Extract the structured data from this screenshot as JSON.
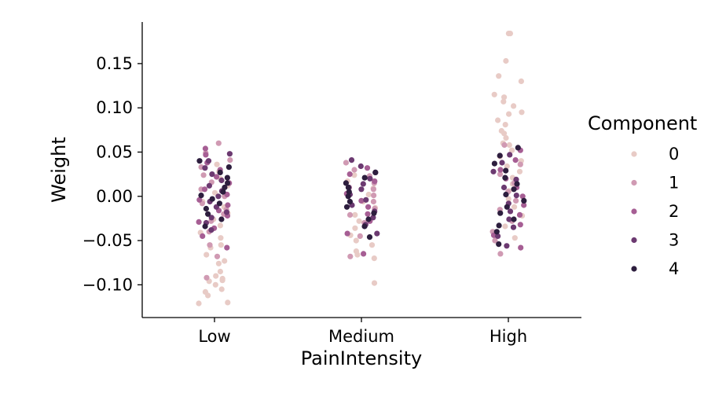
{
  "chart_data": {
    "type": "scatter",
    "subtype": "strip",
    "xlabel": "PainIntensity",
    "ylabel": "Weight",
    "categories": [
      "Low",
      "Medium",
      "High"
    ],
    "ylim": [
      -0.137,
      0.197
    ],
    "yticks": [
      -0.1,
      -0.05,
      0.0,
      0.05,
      0.1,
      0.15
    ],
    "ytick_labels": [
      "−0.10",
      "−0.05",
      "0.00",
      "0.05",
      "0.10",
      "0.15"
    ],
    "legend": {
      "title": "Component",
      "placement": "right"
    },
    "grid": false,
    "series": [
      {
        "name": "0",
        "color": "#e8cbc6",
        "points": [
          {
            "category": "Low",
            "values": [
              -0.121,
              -0.12,
              -0.112,
              -0.108,
              -0.105,
              -0.1,
              -0.096,
              -0.095,
              -0.093,
              -0.09,
              -0.085,
              -0.076,
              -0.073,
              -0.066,
              -0.058,
              -0.055,
              -0.047,
              -0.041,
              -0.033,
              -0.026,
              -0.019,
              -0.012,
              -0.006,
              0.004,
              0.012,
              0.02,
              0.028,
              0.036
            ]
          },
          {
            "category": "Medium",
            "values": [
              -0.098,
              -0.07,
              -0.066,
              -0.062,
              -0.055,
              -0.05,
              -0.044,
              -0.036,
              -0.028,
              -0.021,
              -0.013,
              -0.006,
              0.002,
              0.009,
              0.017,
              0.024
            ]
          },
          {
            "category": "High",
            "values": [
              0.184,
              0.184,
              0.153,
              0.136,
              0.13,
              0.115,
              0.112,
              0.107,
              0.102,
              0.095,
              0.093,
              0.086,
              0.081,
              0.074,
              0.071,
              0.066,
              0.06,
              0.058,
              0.052,
              0.045,
              0.04,
              0.034,
              0.028,
              0.021,
              0.014,
              0.006,
              -0.003,
              -0.012,
              -0.022,
              -0.034,
              -0.047
            ]
          }
        ]
      },
      {
        "name": "1",
        "color": "#d09ab3",
        "points": [
          {
            "category": "Low",
            "values": [
              -0.092,
              -0.068,
              -0.055,
              -0.04,
              -0.028,
              -0.02,
              -0.015,
              -0.008,
              0.0,
              0.008,
              0.016,
              0.024,
              0.033,
              0.041,
              0.049,
              0.06
            ]
          },
          {
            "category": "Medium",
            "values": [
              -0.068,
              -0.045,
              -0.03,
              -0.021,
              -0.014,
              -0.006,
              0.001,
              0.008,
              0.015,
              0.023,
              0.03,
              0.038
            ]
          },
          {
            "category": "High",
            "values": [
              -0.065,
              -0.05,
              -0.04,
              -0.028,
              -0.015,
              -0.005,
              0.005,
              0.015,
              0.025,
              0.036,
              0.046,
              0.058
            ]
          }
        ]
      },
      {
        "name": "2",
        "color": "#a65e94",
        "points": [
          {
            "category": "Low",
            "values": [
              -0.058,
              -0.045,
              -0.036,
              -0.029,
              -0.022,
              -0.016,
              -0.01,
              -0.004,
              0.002,
              0.008,
              0.015,
              0.022,
              0.03,
              0.038,
              0.047,
              0.054
            ]
          },
          {
            "category": "Medium",
            "values": [
              -0.065,
              -0.042,
              -0.028,
              -0.02,
              -0.012,
              -0.005,
              0.003,
              0.01,
              0.017,
              0.025,
              0.032
            ]
          },
          {
            "category": "High",
            "values": [
              -0.058,
              -0.044,
              -0.032,
              -0.021,
              -0.01,
              0.0,
              0.01,
              0.02,
              0.03,
              0.041,
              0.052
            ]
          }
        ]
      },
      {
        "name": "3",
        "color": "#6c3a71",
        "points": [
          {
            "category": "Low",
            "values": [
              -0.038,
              -0.03,
              -0.024,
              -0.018,
              -0.012,
              -0.006,
              0.0,
              0.006,
              0.012,
              0.018,
              0.025,
              0.032,
              0.04,
              0.048
            ]
          },
          {
            "category": "Medium",
            "values": [
              -0.042,
              -0.032,
              -0.024,
              -0.017,
              -0.01,
              -0.004,
              0.002,
              0.008,
              0.014,
              0.02,
              0.027,
              0.034,
              0.041
            ]
          },
          {
            "category": "High",
            "values": [
              -0.056,
              -0.045,
              -0.035,
              -0.026,
              -0.017,
              -0.008,
              0.001,
              0.01,
              0.019,
              0.028,
              0.038,
              0.047
            ]
          }
        ]
      },
      {
        "name": "4",
        "color": "#2d1e3e",
        "points": [
          {
            "category": "Low",
            "values": [
              -0.034,
              -0.026,
              -0.02,
              -0.014,
              -0.008,
              -0.003,
              0.001,
              0.005,
              0.01,
              0.015,
              0.021,
              0.027,
              0.033,
              0.04
            ]
          },
          {
            "category": "Medium",
            "values": [
              -0.046,
              -0.034,
              -0.026,
              -0.019,
              -0.012,
              -0.006,
              0.0,
              0.005,
              0.01,
              0.015,
              0.021,
              0.027
            ]
          },
          {
            "category": "High",
            "values": [
              -0.054,
              -0.04,
              -0.033,
              -0.026,
              -0.019,
              -0.012,
              -0.005,
              0.002,
              0.008,
              0.014,
              0.021,
              0.029,
              0.037,
              0.046,
              0.055
            ]
          }
        ]
      }
    ]
  }
}
